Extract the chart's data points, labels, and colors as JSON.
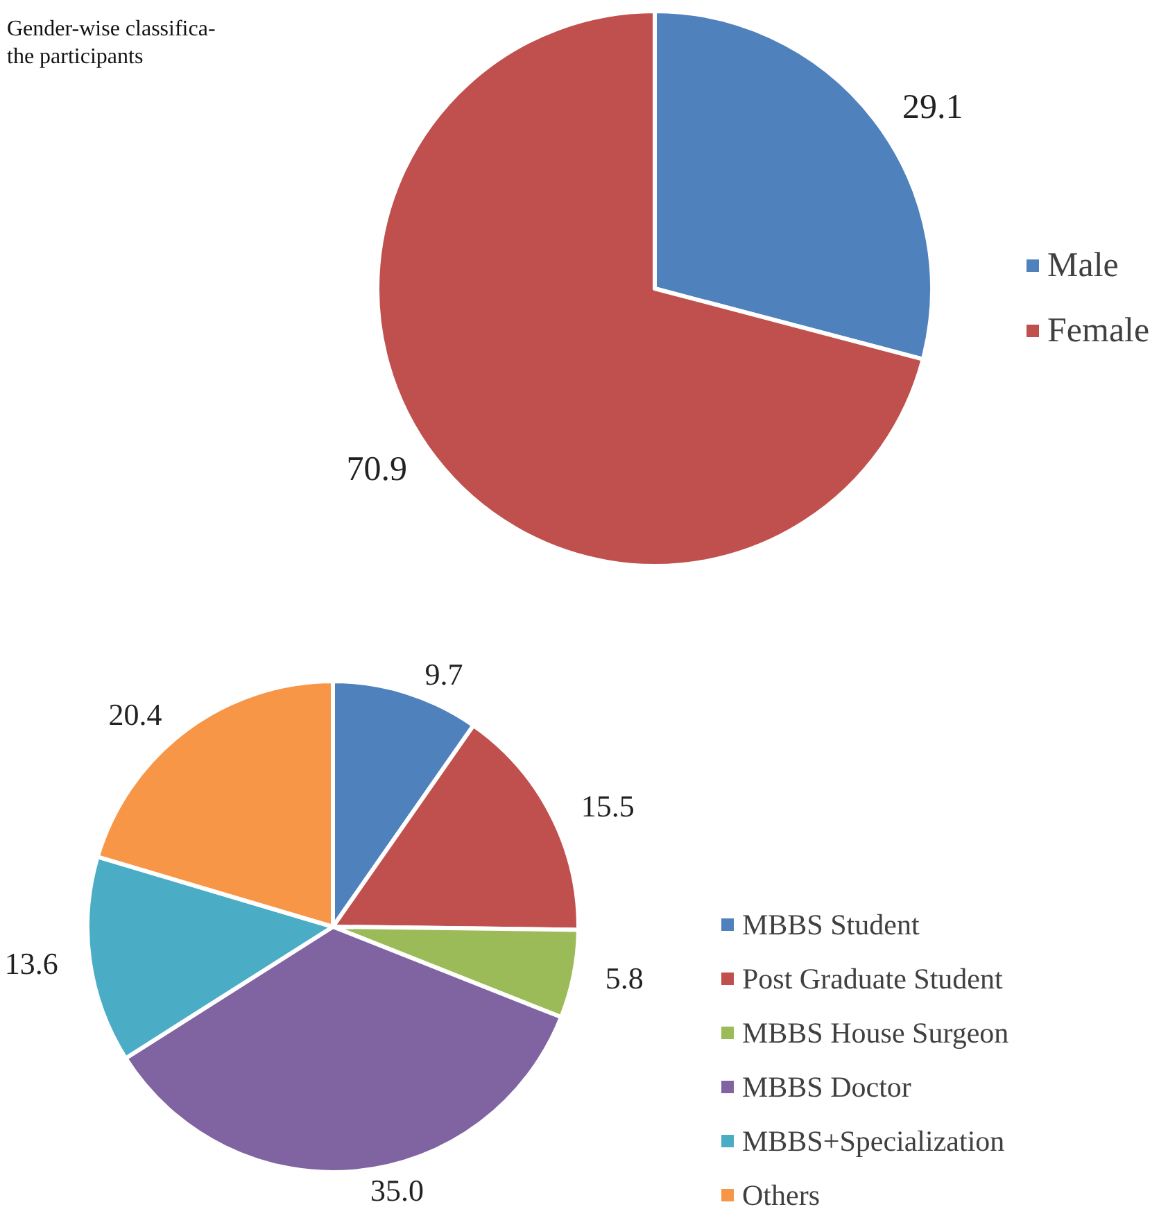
{
  "chart_data": [
    {
      "type": "pie",
      "title": "Gender-wise classifica-\nthe participants",
      "categories": [
        "Male",
        "Female"
      ],
      "values": [
        29.1,
        70.9
      ],
      "colors": [
        "#4f81bd",
        "#c0504d"
      ],
      "data_labels": true,
      "legend": "right"
    },
    {
      "type": "pie",
      "categories": [
        "MBBS Student",
        "Post Graduate Student",
        "MBBS House Surgeon",
        "MBBS Doctor",
        "MBBS+Specialization",
        "Others"
      ],
      "values": [
        9.7,
        15.5,
        5.8,
        35.0,
        13.6,
        20.4
      ],
      "colors": [
        "#4f81bd",
        "#c0504d",
        "#9bbb59",
        "#8064a2",
        "#4bacc6",
        "#f79646"
      ],
      "value_labels": [
        "9.7",
        "15.5",
        "5.8",
        "35.0",
        "13.6",
        "20.4"
      ],
      "legend": "bottom right"
    }
  ]
}
